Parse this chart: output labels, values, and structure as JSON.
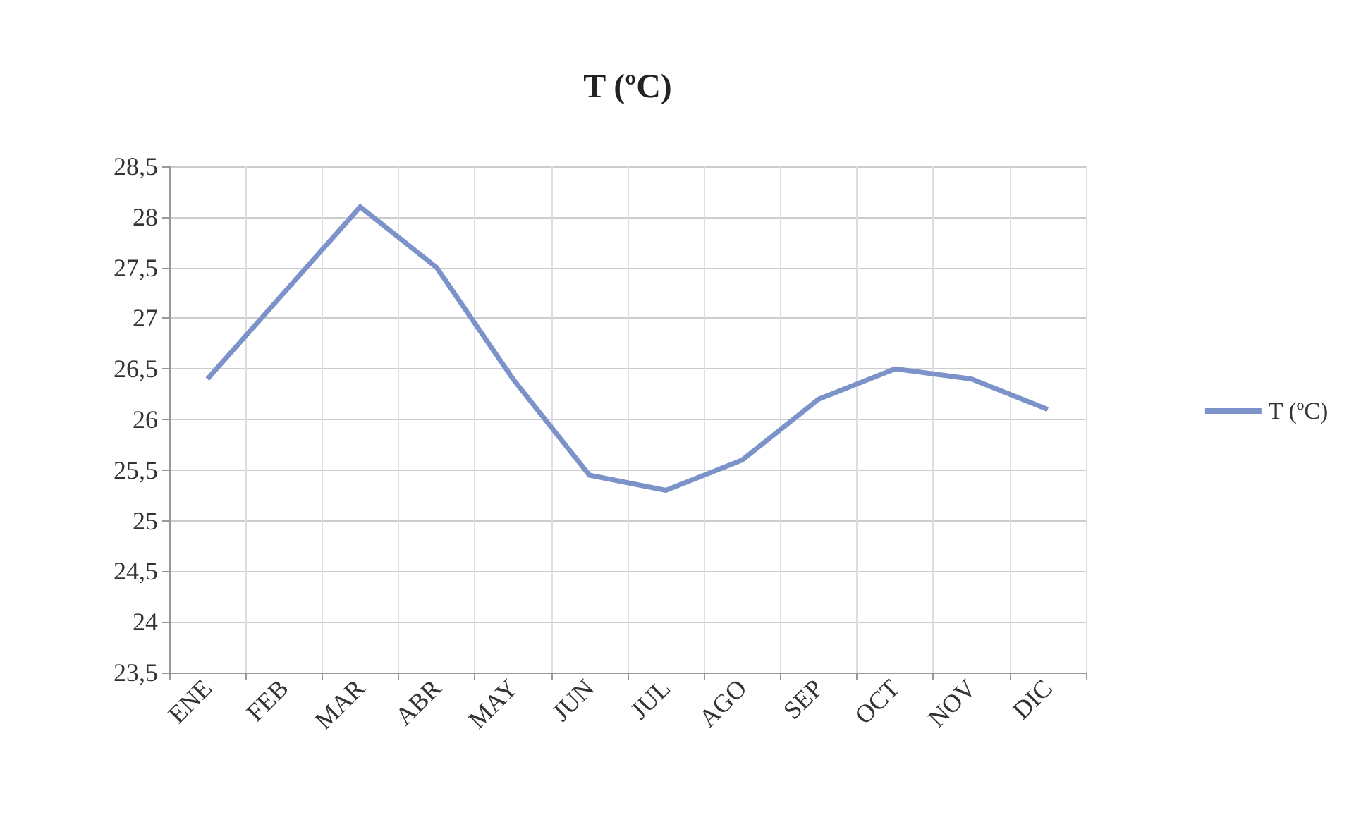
{
  "chart_data": {
    "type": "line",
    "title": "T (ºC)",
    "categories": [
      "ENE",
      "FEB",
      "MAR",
      "ABR",
      "MAY",
      "JUN",
      "JUL",
      "AGO",
      "SEP",
      "OCT",
      "NOV",
      "DIC"
    ],
    "series": [
      {
        "name": "T (ºC)",
        "color": "#7b93c9",
        "values": [
          26.4,
          27.25,
          28.1,
          27.5,
          26.4,
          25.45,
          25.3,
          25.6,
          26.2,
          26.5,
          26.4,
          26.1
        ]
      }
    ],
    "ylim": [
      23.5,
      28.5
    ],
    "yticks": [
      {
        "value": 23.5,
        "label": "23,5"
      },
      24,
      {
        "value": 24.5,
        "label": "24,5"
      },
      25,
      {
        "value": 25.5,
        "label": "25,5"
      },
      26,
      {
        "value": 26.5,
        "label": "26,5"
      },
      27,
      {
        "value": 27.5,
        "label": "27,5"
      },
      28,
      {
        "value": 28.5,
        "label": "28,5"
      }
    ],
    "grid": true,
    "legend": "right",
    "marker": "none"
  }
}
